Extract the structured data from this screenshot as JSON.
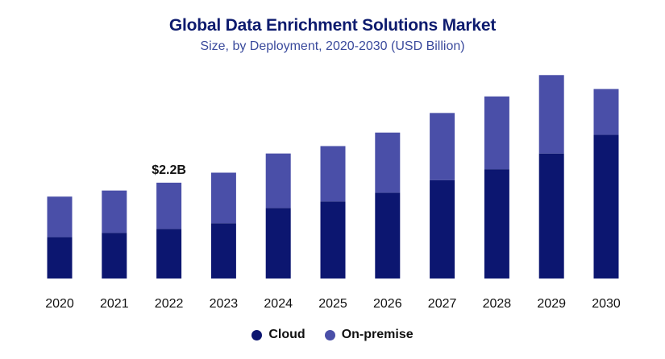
{
  "chart_data": {
    "type": "bar",
    "stacked": true,
    "title": "Global Data Enrichment Solutions Market",
    "subtitle": "Size, by Deployment, 2020-2030 (USD Billion)",
    "categories": [
      "2020",
      "2021",
      "2022",
      "2023",
      "2024",
      "2025",
      "2026",
      "2027",
      "2028",
      "2029",
      "2030"
    ],
    "series": [
      {
        "name": "Cloud",
        "color": "#0c1670",
        "values": [
          0.95,
          1.05,
          1.14,
          1.27,
          1.62,
          1.77,
          1.97,
          2.26,
          2.51,
          2.87,
          3.3
        ]
      },
      {
        "name": "On-premise",
        "color": "#4a4fa8",
        "values": [
          0.93,
          0.97,
          1.06,
          1.16,
          1.25,
          1.27,
          1.38,
          1.54,
          1.67,
          1.8,
          1.05
        ]
      }
    ],
    "annotations": [
      {
        "category": "2022",
        "text": "$2.2B"
      }
    ],
    "xlabel": "",
    "ylabel": "",
    "ylim": [
      0,
      5.1
    ],
    "grid": false,
    "legend": "bottom-center"
  }
}
